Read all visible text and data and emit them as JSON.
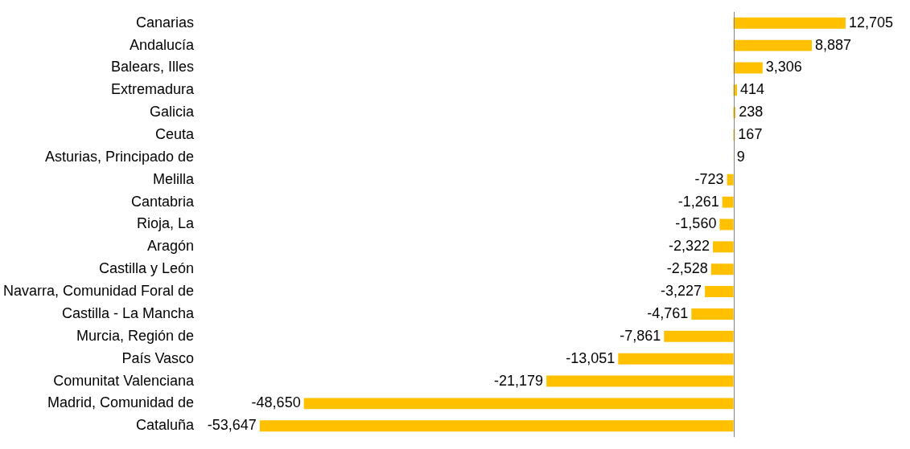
{
  "chart_data": {
    "type": "bar",
    "orientation": "horizontal",
    "categories": [
      "Canarias",
      "Andalucía",
      "Balears, Illes",
      "Extremadura",
      "Galicia",
      "Ceuta",
      "Asturias, Principado de",
      "Melilla",
      "Cantabria",
      "Rioja, La",
      "Aragón",
      "Castilla y León",
      "Navarra, Comunidad Foral de",
      "Castilla - La Mancha",
      "Murcia, Región de",
      "País Vasco",
      "Comunitat Valenciana",
      "Madrid, Comunidad de",
      "Cataluña"
    ],
    "values": [
      12705,
      8887,
      3306,
      414,
      238,
      167,
      9,
      -723,
      -1261,
      -1560,
      -2322,
      -2528,
      -3227,
      -4761,
      -7861,
      -13051,
      -21179,
      -48650,
      -53647
    ],
    "value_labels": [
      "12,705",
      "8,887",
      "3,306",
      "414",
      "238",
      "167",
      "9",
      "-723",
      "-1,261",
      "-1,560",
      "-2,322",
      "-2,528",
      "-3,227",
      "-4,761",
      "-7,861",
      "-13,051",
      "-21,179",
      "-48,650",
      "-53,647"
    ],
    "color": "#ffc000",
    "tick_labels": "y"
  }
}
